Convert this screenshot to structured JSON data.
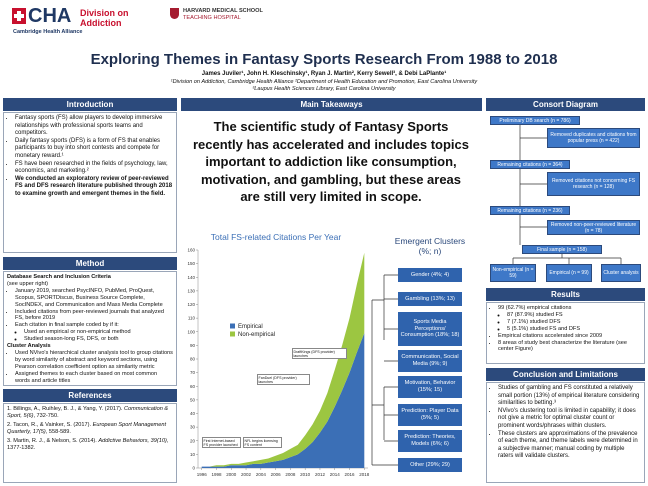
{
  "header": {
    "logo": "CHA",
    "division": "Division on Addiction",
    "alliance": "Cambridge Health Alliance",
    "hms": "HARVARD MEDICAL SCHOOL",
    "hms_sub": "TEACHING HOSPITAL",
    "title": "Exploring Themes in Fantasy Sports Research From 1988 to 2018",
    "authors": "James Juviler¹, John H. Kleschinsky¹, Ryan J. Martin², Kerry Sewell³, & Debi LaPlante¹",
    "affiliations": [
      "¹Division on Addiction, Cambridge Health Alliance ²Department of Health Education and Promotion, East Carolina University",
      "³Laupus Health Sciences Library, East Carolina University"
    ]
  },
  "introduction": {
    "heading": "Introduction",
    "bullets": [
      "Fantasy sports (FS) allow players to develop immersive relationships with professional sports teams and competitors.",
      "Daily fantasy sports (DFS) is a form of FS that enables participants to buy into short contests and compete for monetary reward.¹",
      "FS have been researched in the fields of psychology, law, economics, and marketing.²",
      "We conducted an exploratory review of peer-reviewed FS and DFS research literature published through 2018 to examine growth and emergent themes in the field."
    ]
  },
  "method": {
    "heading": "Method",
    "search_heading": "Database Search and Inclusion Criteria",
    "search_note": "(see upper right)",
    "search_bullets": [
      "January 2019, searched PsycINFO, PubMed, ProQuest, Scopus, SPORTDiscus, Business Source Complete, SocINDEX, and Communication and Mass Media Complete",
      "Included citations from peer-reviewed journals that analyzed FS, before 2019",
      "Each citation in final sample coded by if it:"
    ],
    "coding_bullets": [
      "Used an empirical or non-empirical method",
      "Studied season-long FS, DFS, or both"
    ],
    "cluster_heading": "Cluster Analysis",
    "cluster_bullets": [
      "Used NVivo's hierarchical cluster analysis tool to group citations by word similarity of abstract and keyword sections, using Pearson correlation coefficient option as similarity metric",
      "Assigned themes to each cluster based on most common words and article titles"
    ]
  },
  "references": {
    "heading": "References",
    "items": [
      {
        "pre": "1. Billings, A., Ruihley, B. J., & Yang, Y. (2017). ",
        "journal": "Communication & Sport, 5(6)",
        "post": ", 732-750."
      },
      {
        "pre": "2. Tacon, R., & Vainker, S. (2017). ",
        "journal": "European Sport Management Quarterly, 17(5)",
        "post": ", 558-589."
      },
      {
        "pre": "3. Martin, R. J., & Nelson, S. (2014). ",
        "journal": "Addictive Behaviors, 39(10)",
        "post": ", 1377-1382."
      }
    ]
  },
  "takeaways": {
    "heading": "Main Takeaways",
    "text": "The scientific study of Fantasy Sports recently has accelerated and includes topics important to addiction like consumption, motivation, and gambling, but these areas are still very limited in scope."
  },
  "chart_data": {
    "type": "area",
    "title": "Total FS-related Citations Per Year",
    "x": [
      1996,
      1997,
      1998,
      1999,
      2000,
      2001,
      2002,
      2003,
      2004,
      2005,
      2006,
      2007,
      2008,
      2009,
      2010,
      2011,
      2012,
      2013,
      2014,
      2015,
      2016,
      2017,
      2018
    ],
    "series": [
      {
        "name": "Empirical",
        "color": "#3b6fb6",
        "values": [
          1,
          1,
          1,
          1,
          2,
          2,
          2,
          3,
          3,
          4,
          5,
          6,
          8,
          10,
          14,
          19,
          26,
          34,
          45,
          57,
          70,
          85,
          99
        ]
      },
      {
        "name": "Non-empirical",
        "color": "#9cc641",
        "values": [
          0,
          0,
          1,
          1,
          1,
          1,
          2,
          2,
          3,
          3,
          4,
          5,
          6,
          7,
          10,
          13,
          16,
          21,
          27,
          33,
          40,
          50,
          59
        ]
      }
    ],
    "xlim": [
      1995.5,
      2018.5
    ],
    "xticks": [
      1996,
      1998,
      2000,
      2002,
      2004,
      2006,
      2008,
      2010,
      2012,
      2014,
      2016,
      2018
    ],
    "ylim": [
      0,
      160
    ],
    "yticks": [
      0,
      10,
      20,
      30,
      40,
      50,
      60,
      70,
      80,
      90,
      100,
      110,
      120,
      130,
      140,
      150,
      160
    ],
    "stacked": true,
    "annotations": [
      "First Internet-based FS provider launched",
      "NFL begins licensing FS content",
      "FanDuel (DFS provider) launches",
      "DraftKings (DFS provider) launches"
    ]
  },
  "clusters": {
    "title": "Emergent Clusters (%; n)",
    "items": [
      "Gender (4%; 4)",
      "Gambling (13%; 13)",
      "Sports Media Perceptions/ Consumption (18%; 18)",
      "Communication, Social Media (9%; 9)",
      "Motivation, Behavior (15%; 15)",
      "Prediction: Player Data (5%; 5)",
      "Prediction: Theories, Models (6%; 6)",
      "Other (29%; 29)"
    ]
  },
  "consort": {
    "heading": "Consort Diagram",
    "nodes": [
      "Preliminary DB search (n = 786)",
      "Removed duplicates and citations from popular press (n = 422)",
      "Remaining citations (n = 364)",
      "Removed citations not concerning FS research (n = 128)",
      "Remaining citations (n = 236)",
      "Removed non-peer-reviewed literature (n = 78)",
      "Final sample (n = 158)",
      "Non-empirical (n = 59)",
      "Empirical (n = 99)",
      "Cluster analysis"
    ]
  },
  "results": {
    "heading": "Results",
    "bullets": [
      "99 (62.7%) empirical citations",
      "Empirical citations accelerated since 2009",
      "8 areas of study best characterize the literature (see center Figure)"
    ],
    "sub_bullets": [
      "87 (87.9%) studied FS",
      "7 (7.1%) studied DFS",
      "5 (5.1%) studied FS and DFS"
    ]
  },
  "conclusion": {
    "heading": "Conclusion and Limitations",
    "bullets": [
      "Studies of gambling and FS constituted a relatively small portion (13%) of empirical literature considering similarities to betting.³",
      "NVivo's clustering tool is limited in capability; it does not give a metric for optimal cluster count or prominent words/phrases within clusters.",
      "These clusters are approximations of the prevalence of each theme, and theme labels were determined in a subjective manner; manual coding by multiple raters will validate clusters."
    ]
  }
}
